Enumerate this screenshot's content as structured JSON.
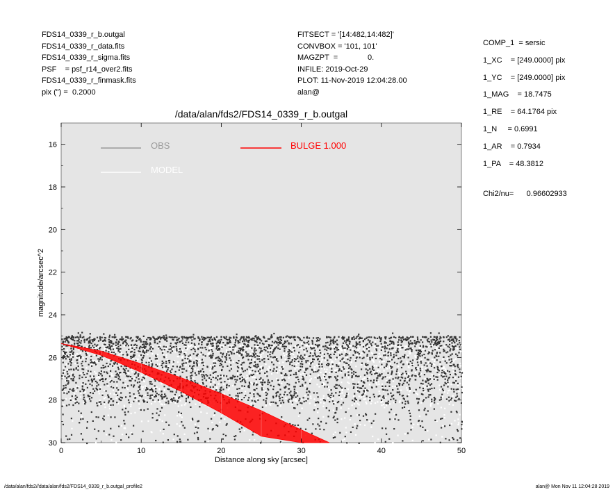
{
  "header_left": [
    "FDS14_0339_r_b.outgal",
    "FDS14_0339_r_data.fits",
    "FDS14_0339_r_sigma.fits",
    "PSF    = psf_r14_over2.fits",
    "FDS14_0339_r_finmask.fits",
    "pix (\") =  0.2000"
  ],
  "header_mid": [
    "FITSECT = '[14:482,14:482]'",
    "CONVBOX = '101, 101'",
    "MAGZPT  =              0.",
    "INFILE: 2019-Oct-29",
    "PLOT: 11-Nov-2019 12:04:28.00",
    "alan@"
  ],
  "header_right": [
    "COMP_1  = sersic",
    "1_XC    = [249.0000] pix",
    "1_YC    = [249.0000] pix",
    "1_MAG    = 18.7475",
    "1_RE    = 64.1764 pix",
    "1_N     = 0.6991",
    "1_AR    = 0.7934",
    "1_PA    = 48.3812"
  ],
  "chi2": "Chi2/nu=      0.96602933",
  "footer_left": "/data/alan/fds2//data/alan/fds2/FDS14_0339_r_b.outgal_profile2",
  "footer_right": "alan@  Mon Nov 11 12:04:28 2019",
  "colors": {
    "plot_bg": "#e5e5e5",
    "obs": "#333333",
    "obs_legend": "#999999",
    "model": "#ffffff",
    "bulge": "#ff0000"
  },
  "chart_data": {
    "type": "scatter",
    "title": "/data/alan/fds2/FDS14_0339_r_b.outgal",
    "xlabel": "Distance along sky [arcsec]",
    "ylabel": "magnitude/arcsec^2",
    "xlim": [
      0,
      50
    ],
    "ylim": [
      30,
      15
    ],
    "y_inverted": true,
    "xticks": [
      "0",
      "10",
      "20",
      "30",
      "40",
      "50"
    ],
    "xtick_values": [
      0,
      10,
      20,
      30,
      40,
      50
    ],
    "yticks": [
      "16",
      "18",
      "20",
      "22",
      "24",
      "26",
      "28",
      "30"
    ],
    "ytick_values": [
      16,
      18,
      20,
      22,
      24,
      26,
      28,
      30
    ],
    "grid": false,
    "legend_placement": "top-left",
    "legend": [
      {
        "label": "OBS",
        "color": "#999999"
      },
      {
        "label": "MODEL",
        "color": "#ffffff"
      },
      {
        "label": "BULGE  1.000",
        "color": "#ff0000"
      }
    ],
    "series": [
      {
        "name": "OBS",
        "kind": "points",
        "color": "#333333",
        "x_range": [
          0,
          50
        ],
        "y_range": [
          24.8,
          30
        ],
        "approx_count": 3000
      },
      {
        "name": "MODEL",
        "kind": "points",
        "color": "#ffffff",
        "x_range": [
          0,
          50
        ],
        "y_range": [
          25.2,
          30
        ],
        "approx_count": 1500
      },
      {
        "name": "BULGE  1.000",
        "kind": "band",
        "color": "#ff0000",
        "x": [
          0,
          5,
          10,
          15,
          20,
          25,
          30,
          33.5
        ],
        "y_upper": [
          25.35,
          25.7,
          26.3,
          26.95,
          27.7,
          28.5,
          29.4,
          30.0
        ],
        "y_lower": [
          25.35,
          25.9,
          26.7,
          27.6,
          28.6,
          29.7,
          30.0,
          30.0
        ]
      }
    ]
  }
}
